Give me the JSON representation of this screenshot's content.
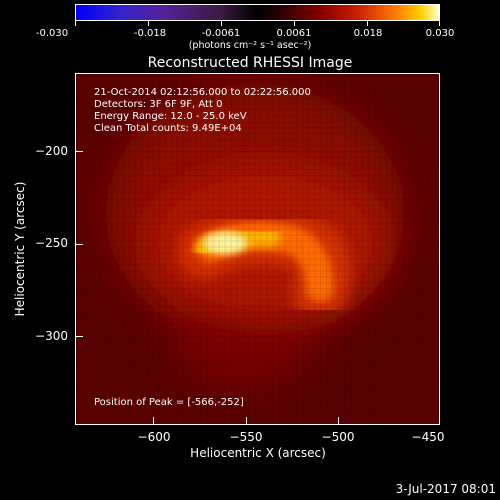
{
  "colorbar": {
    "ticks": [
      "-0.030",
      "-0.018",
      "-0.0061",
      "0.0061",
      "0.018",
      "0.030"
    ],
    "units": "(photons cm⁻² s⁻¹ asec⁻²)",
    "colors": [
      "#0000ff",
      "#000000",
      "#ff0000",
      "#ffd000",
      "#ffffcc"
    ]
  },
  "plot": {
    "title": "Reconstructed RHESSI Image",
    "xlabel": "Heliocentric X (arcsec)",
    "ylabel": "Heliocentric Y (arcsec)",
    "xticks": [
      "−600",
      "−550",
      "−500",
      "−450"
    ],
    "yticks": [
      "−200",
      "−250",
      "−300"
    ],
    "annotations": [
      "21-Oct-2014 02:12:56.000 to 02:22:56.000",
      "Detectors: 3F 6F 9F, Att 0",
      "Energy Range: 12.0 - 25.0 keV",
      "Clean    Total counts: 9.49E+04"
    ],
    "peak": "Position of Peak = [-566,-252]"
  },
  "footer": {
    "timestamp": "3-Jul-2017 08:01"
  }
}
